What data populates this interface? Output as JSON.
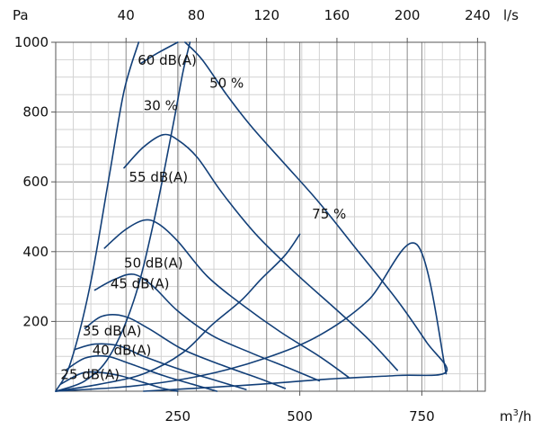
{
  "chart_data": {
    "type": "line",
    "xlabel": "m3/h",
    "xlabel_sup": "3",
    "x2label": "l/s",
    "ylabel": "Pa",
    "xlim": [
      0,
      880
    ],
    "x2lim": [
      0,
      244.4
    ],
    "ylim": [
      0,
      1000
    ],
    "x_ticks": [
      250,
      500,
      750
    ],
    "x2_ticks": [
      40,
      80,
      120,
      160,
      200,
      240
    ],
    "y_ticks": [
      200,
      400,
      600,
      800,
      1000
    ],
    "grid": true,
    "series": [
      {
        "name": "25 dB(A)",
        "kind": "sound",
        "points": [
          [
            10,
            20
          ],
          [
            50,
            50
          ],
          [
            80,
            55
          ],
          [
            130,
            45
          ],
          [
            180,
            25
          ],
          [
            220,
            8
          ],
          [
            250,
            0
          ]
        ]
      },
      {
        "name": "",
        "kind": "sound",
        "points": [
          [
            20,
            60
          ],
          [
            60,
            95
          ],
          [
            105,
            100
          ],
          [
            150,
            80
          ],
          [
            220,
            45
          ],
          [
            280,
            20
          ],
          [
            330,
            0
          ]
        ]
      },
      {
        "name": "40 dB(A)",
        "kind": "sound",
        "points": [
          [
            40,
            120
          ],
          [
            80,
            135
          ],
          [
            130,
            130
          ],
          [
            180,
            100
          ],
          [
            260,
            60
          ],
          [
            330,
            30
          ],
          [
            390,
            5
          ]
        ]
      },
      {
        "name": "35 dB(A)",
        "kind": "sound",
        "points": [
          [
            60,
            180
          ],
          [
            95,
            215
          ],
          [
            140,
            215
          ],
          [
            190,
            180
          ],
          [
            260,
            120
          ],
          [
            340,
            75
          ],
          [
            420,
            35
          ],
          [
            470,
            8
          ]
        ]
      },
      {
        "name": "45 dB(A)",
        "kind": "sound",
        "points": [
          [
            80,
            290
          ],
          [
            120,
            320
          ],
          [
            160,
            335
          ],
          [
            200,
            300
          ],
          [
            250,
            230
          ],
          [
            320,
            160
          ],
          [
            400,
            110
          ],
          [
            480,
            65
          ],
          [
            540,
            30
          ]
        ]
      },
      {
        "name": "50 dB(A)",
        "kind": "sound",
        "points": [
          [
            100,
            410
          ],
          [
            140,
            460
          ],
          [
            180,
            490
          ],
          [
            210,
            480
          ],
          [
            250,
            430
          ],
          [
            310,
            330
          ],
          [
            380,
            250
          ],
          [
            460,
            170
          ],
          [
            540,
            100
          ],
          [
            600,
            40
          ]
        ]
      },
      {
        "name": "55 dB(A)",
        "kind": "sound",
        "points": [
          [
            140,
            640
          ],
          [
            180,
            700
          ],
          [
            220,
            735
          ],
          [
            250,
            720
          ],
          [
            290,
            670
          ],
          [
            340,
            570
          ],
          [
            410,
            450
          ],
          [
            490,
            340
          ],
          [
            570,
            240
          ],
          [
            640,
            150
          ],
          [
            700,
            60
          ]
        ]
      },
      {
        "name": "60 dB(A)",
        "kind": "sound",
        "points": [
          [
            175,
            940
          ],
          [
            210,
            970
          ],
          [
            250,
            1000
          ]
        ]
      },
      {
        "name": "",
        "kind": "system_resistance",
        "points": [
          [
            0,
            0
          ],
          [
            30,
            80
          ],
          [
            70,
            300
          ],
          [
            110,
            620
          ],
          [
            140,
            860
          ],
          [
            170,
            1000
          ]
        ]
      },
      {
        "name": "30 %",
        "kind": "efficiency",
        "points": [
          [
            0,
            0
          ],
          [
            60,
            30
          ],
          [
            110,
            100
          ],
          [
            160,
            260
          ],
          [
            200,
            480
          ],
          [
            240,
            760
          ],
          [
            260,
            910
          ],
          [
            275,
            1000
          ]
        ]
      },
      {
        "name": "50 %",
        "kind": "efficiency",
        "points": [
          [
            0,
            0
          ],
          [
            90,
            20
          ],
          [
            180,
            50
          ],
          [
            260,
            110
          ],
          [
            320,
            190
          ],
          [
            380,
            260
          ],
          [
            420,
            320
          ],
          [
            470,
            390
          ],
          [
            500,
            450
          ]
        ]
      },
      {
        "name": "75 %",
        "kind": "efficiency",
        "points": [
          [
            0,
            0
          ],
          [
            160,
            15
          ],
          [
            300,
            45
          ],
          [
            430,
            95
          ],
          [
            540,
            160
          ],
          [
            640,
            260
          ],
          [
            740,
            420
          ],
          [
            800,
            50
          ]
        ]
      },
      {
        "name": "",
        "kind": "max_curve",
        "points": [
          [
            265,
            1000
          ],
          [
            300,
            950
          ],
          [
            350,
            850
          ],
          [
            400,
            760
          ],
          [
            470,
            650
          ],
          [
            540,
            540
          ],
          [
            620,
            400
          ],
          [
            700,
            260
          ],
          [
            760,
            140
          ],
          [
            800,
            55
          ],
          [
            700,
            45
          ],
          [
            560,
            35
          ],
          [
            420,
            20
          ],
          [
            280,
            8
          ],
          [
            180,
            0
          ]
        ]
      }
    ],
    "annotations": [
      {
        "text": "60 dB(A)",
        "x": 168,
        "y": 935
      },
      {
        "text": "50 %",
        "x": 315,
        "y": 870
      },
      {
        "text": "30 %",
        "x": 180,
        "y": 805
      },
      {
        "text": "55 dB(A)",
        "x": 150,
        "y": 600
      },
      {
        "text": "75 %",
        "x": 525,
        "y": 495
      },
      {
        "text": "50 dB(A)",
        "x": 140,
        "y": 355
      },
      {
        "text": "45 dB(A)",
        "x": 112,
        "y": 295
      },
      {
        "text": "35 dB(A)",
        "x": 55,
        "y": 160
      },
      {
        "text": "40 dB(A)",
        "x": 75,
        "y": 105
      },
      {
        "text": "25 dB(A)",
        "x": 10,
        "y": 35
      }
    ],
    "colors": {
      "curve": "#123f78",
      "grid_major": "#8a8a8a",
      "grid_minor": "#d2d2d2",
      "axis": "#555555"
    }
  }
}
